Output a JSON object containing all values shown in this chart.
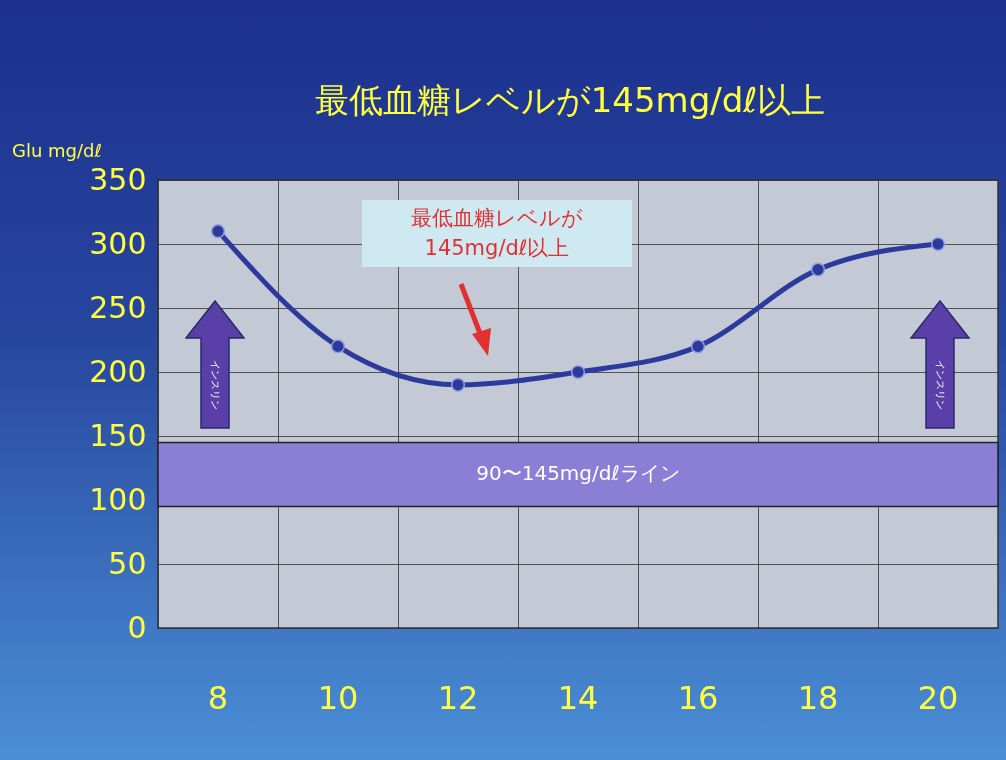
{
  "chart_data": {
    "type": "line",
    "title": "最低血糖レベルが145mg/dℓ以上",
    "ylabel": "Glu mg/dℓ",
    "categories": [
      "8",
      "10",
      "12",
      "14",
      "16",
      "18",
      "20"
    ],
    "series": [
      {
        "color": "#2b3a9c",
        "values": [
          310,
          220,
          190,
          200,
          220,
          280,
          300
        ]
      }
    ],
    "ylim": [
      0,
      350
    ],
    "yticks": [
      0,
      50,
      100,
      150,
      200,
      250,
      300,
      350
    ],
    "grid": true,
    "marker": "circle",
    "bands": [
      {
        "axis": "y",
        "from": 95,
        "to": 145,
        "label": "90〜145mg/dℓライン",
        "color": "#8a7fd4"
      }
    ],
    "annotations": [
      "最低血糖レベルが\n145mg/dℓ以上",
      "インスリン",
      "インスリン"
    ]
  }
}
